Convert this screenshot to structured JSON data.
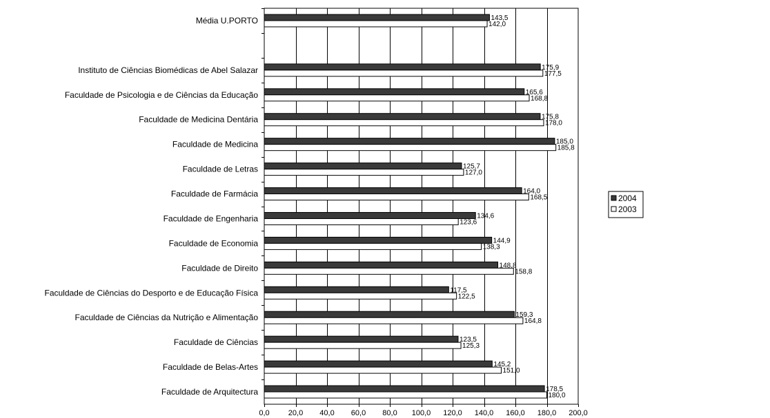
{
  "chart_data": {
    "type": "bar",
    "orientation": "horizontal",
    "categories": [
      "Média U.PORTO",
      "",
      "Instituto de Ciências Biomédicas de Abel Salazar",
      "Faculdade de Psicologia e de Ciências da Educação",
      "Faculdade de Medicina Dentária",
      "Faculdade de Medicina",
      "Faculdade de Letras",
      "Faculdade de Farmácia",
      "Faculdade de Engenharia",
      "Faculdade de Economia",
      "Faculdade de Direito",
      "Faculdade de Ciências do Desporto e de Educação Física",
      "Faculdade de Ciências da Nutrição e Alimentação",
      "Faculdade de Ciências",
      "Faculdade de Belas-Artes",
      "Faculdade de Arquitectura"
    ],
    "series": [
      {
        "name": "2004",
        "color": "#3a3a3a",
        "values": [
          143.5,
          null,
          175.9,
          165.6,
          175.8,
          185.0,
          125.7,
          164.0,
          134.6,
          144.9,
          148.8,
          117.5,
          159.3,
          123.5,
          145.2,
          178.5
        ],
        "labels": [
          "143,5",
          "",
          "175,9",
          "165,6",
          "175,8",
          "185,0",
          "125,7",
          "164,0",
          "134,6",
          "144,9",
          "148,8",
          "117,5",
          "159,3",
          "123,5",
          "145,2",
          "178,5"
        ]
      },
      {
        "name": "2003",
        "color": "#ffffff",
        "values": [
          142.0,
          null,
          177.5,
          168.8,
          178.0,
          185.8,
          127.0,
          168.5,
          123.6,
          138.3,
          158.8,
          122.5,
          164.8,
          125.3,
          151.0,
          180.0
        ],
        "labels": [
          "142,0",
          "",
          "177,5",
          "168,8",
          "178,0",
          "185,8",
          "127,0",
          "168,5",
          "123,6",
          "138,3",
          "158,8",
          "122,5",
          "164,8",
          "125,3",
          "151,0",
          "180,0"
        ]
      }
    ],
    "xlim": [
      0,
      200
    ],
    "xticks": [
      0,
      20,
      40,
      60,
      80,
      100,
      120,
      140,
      160,
      180,
      200
    ],
    "xtick_labels": [
      "0,0",
      "20,0",
      "40,0",
      "60,0",
      "80,0",
      "100,0",
      "120,0",
      "140,0",
      "160,0",
      "180,0",
      "200,0"
    ],
    "grid": "vertical",
    "legend_position": "right"
  }
}
